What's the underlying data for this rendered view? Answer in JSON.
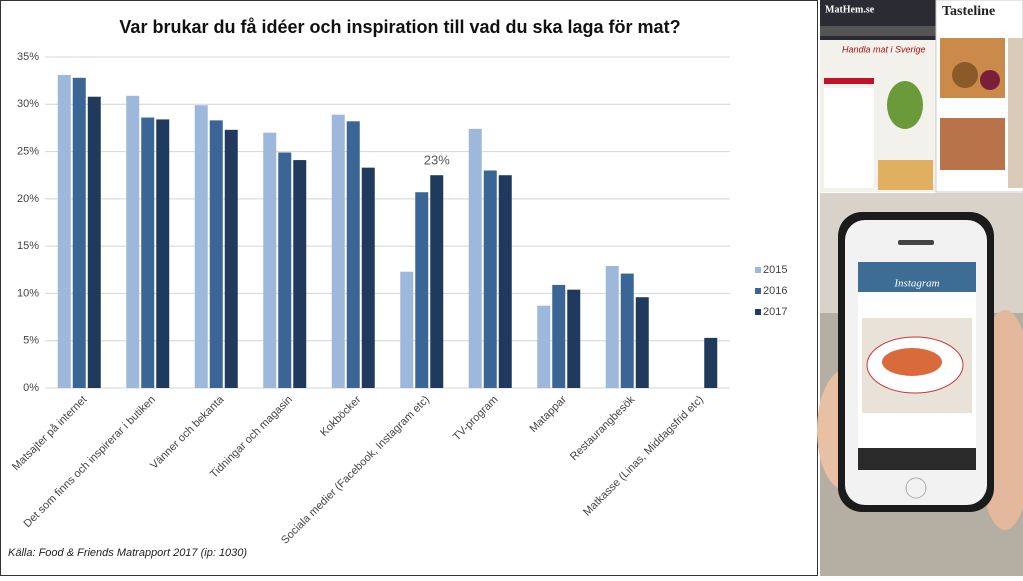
{
  "chart_data": {
    "type": "bar",
    "title": "Var brukar du få idéer och inspiration till vad du ska laga för mat?",
    "categories": [
      "Matsajter på internet",
      "Det som finns och inspirerar i butiken",
      "Vänner och bekanta",
      "Tidningar och magasin",
      "Kokböcker",
      "Sociala medier (Facebook, Instagram etc)",
      "TV-program",
      "Matappar",
      "Restaurangbesök",
      "Matkasse (Linas, Middagsfrid etc)"
    ],
    "series": [
      {
        "name": "2015",
        "color": "#9db8da",
        "values": [
          33.1,
          30.9,
          29.9,
          27.0,
          28.9,
          12.3,
          27.4,
          8.7,
          12.9,
          null
        ]
      },
      {
        "name": "2016",
        "color": "#3b6594",
        "values": [
          32.8,
          28.6,
          28.3,
          24.9,
          28.2,
          20.7,
          23.0,
          10.9,
          12.1,
          null
        ]
      },
      {
        "name": "2017",
        "color": "#1f3a5c",
        "values": [
          30.8,
          28.4,
          27.3,
          24.1,
          23.3,
          22.5,
          22.5,
          10.4,
          9.6,
          5.3
        ],
        "value_labels": [
          null,
          null,
          null,
          null,
          null,
          "23%",
          null,
          null,
          null,
          null
        ]
      }
    ],
    "ylim": [
      0,
      35
    ],
    "yticks": [
      {
        "value": 0,
        "label": "0%"
      },
      {
        "value": 5,
        "label": "5%"
      },
      {
        "value": 10,
        "label": "10%"
      },
      {
        "value": 15,
        "label": "15%"
      },
      {
        "value": 20,
        "label": "20%"
      },
      {
        "value": 25,
        "label": "25%"
      },
      {
        "value": 30,
        "label": "30%"
      },
      {
        "value": 35,
        "label": "35%"
      }
    ],
    "grid": true,
    "legend": "right",
    "source": "Källa: Food & Friends Matrapport 2017  (ip: 1030)"
  },
  "images": {
    "site_logo": "MatHem.se",
    "site_banner": "Handla mat i Sverige",
    "site_brand": "Tasteline",
    "app_name": "Instagram"
  }
}
